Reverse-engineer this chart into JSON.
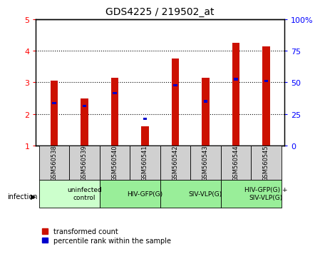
{
  "title": "GDS4225 / 219502_at",
  "samples": [
    "GSM560538",
    "GSM560539",
    "GSM560540",
    "GSM560541",
    "GSM560542",
    "GSM560543",
    "GSM560544",
    "GSM560545"
  ],
  "red_values": [
    3.05,
    2.5,
    3.15,
    1.6,
    3.75,
    3.15,
    4.25,
    4.15
  ],
  "blue_values": [
    2.35,
    2.25,
    2.65,
    1.85,
    2.9,
    2.4,
    3.1,
    3.05
  ],
  "ylim_left": [
    1,
    5
  ],
  "ylim_right": [
    0,
    100
  ],
  "yticks_left": [
    1,
    2,
    3,
    4,
    5
  ],
  "yticks_right": [
    0,
    25,
    50,
    75,
    100
  ],
  "yticklabels_right": [
    "0",
    "25",
    "50",
    "75",
    "100%"
  ],
  "red_color": "#cc1100",
  "blue_color": "#0000cc",
  "bar_width": 0.25,
  "groups": [
    {
      "label": "uninfected\ncontrol",
      "start": 0,
      "end": 2,
      "color": "#ccffcc"
    },
    {
      "label": "HIV-GFP(G)",
      "start": 2,
      "end": 4,
      "color": "#99ee99"
    },
    {
      "label": "SIV-VLP(G)",
      "start": 4,
      "end": 6,
      "color": "#99ee99"
    },
    {
      "label": "HIV-GFP(G) +\nSIV-VLP(G)",
      "start": 6,
      "end": 8,
      "color": "#99ee99"
    }
  ],
  "legend_red_label": "transformed count",
  "legend_blue_label": "percentile rank within the sample",
  "infection_label": "infection",
  "sample_bg_color": "#d0d0d0",
  "dotted_yticks": [
    2,
    3,
    4
  ]
}
